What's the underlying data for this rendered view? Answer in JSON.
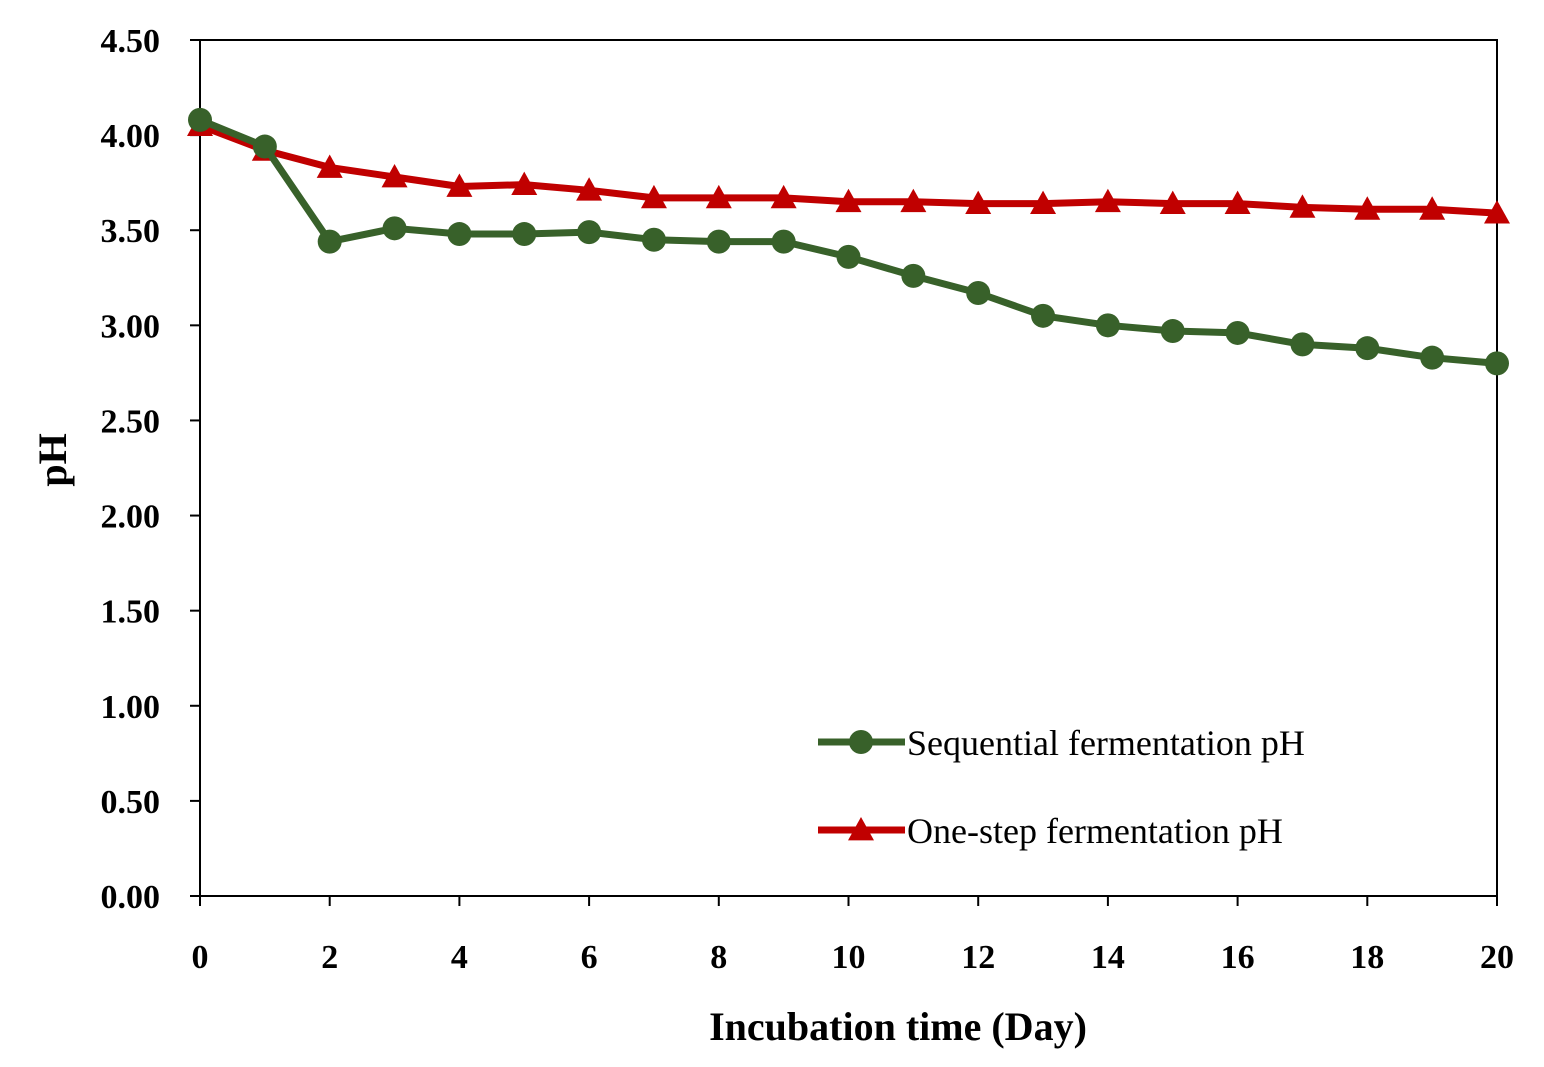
{
  "chart_data": {
    "type": "line",
    "title": "",
    "xlabel": "Incubation time (Day)",
    "ylabel": "pH",
    "xlim": [
      0,
      20
    ],
    "ylim": [
      0,
      4.5
    ],
    "x_ticks": [
      "0",
      "2",
      "4",
      "6",
      "8",
      "10",
      "12",
      "14",
      "16",
      "18",
      "20"
    ],
    "x_tick_values": [
      0,
      2,
      4,
      6,
      8,
      10,
      12,
      14,
      16,
      18,
      20
    ],
    "y_ticks": [
      "0.00",
      "0.50",
      "1.00",
      "1.50",
      "2.00",
      "2.50",
      "3.00",
      "3.50",
      "4.00",
      "4.50"
    ],
    "y_tick_values": [
      0,
      0.5,
      1,
      1.5,
      2,
      2.5,
      3,
      3.5,
      4,
      4.5
    ],
    "grid": false,
    "legend_position": "bottom-right",
    "x": [
      0,
      1,
      2,
      3,
      4,
      5,
      6,
      7,
      8,
      9,
      10,
      11,
      12,
      13,
      14,
      15,
      16,
      17,
      18,
      19,
      20
    ],
    "series": [
      {
        "name": "Sequential fermentation pH",
        "color": "#38612a",
        "marker": "circle",
        "values": [
          4.08,
          3.94,
          3.44,
          3.51,
          3.48,
          3.48,
          3.49,
          3.45,
          3.44,
          3.44,
          3.36,
          3.26,
          3.17,
          3.05,
          3.0,
          2.97,
          2.96,
          2.9,
          2.88,
          2.83,
          2.8
        ]
      },
      {
        "name": "One-step fermentation pH",
        "color": "#c00000",
        "marker": "triangle",
        "values": [
          4.05,
          3.92,
          3.83,
          3.78,
          3.73,
          3.74,
          3.71,
          3.67,
          3.67,
          3.67,
          3.65,
          3.65,
          3.64,
          3.64,
          3.65,
          3.64,
          3.64,
          3.62,
          3.61,
          3.61,
          3.59
        ]
      }
    ]
  }
}
